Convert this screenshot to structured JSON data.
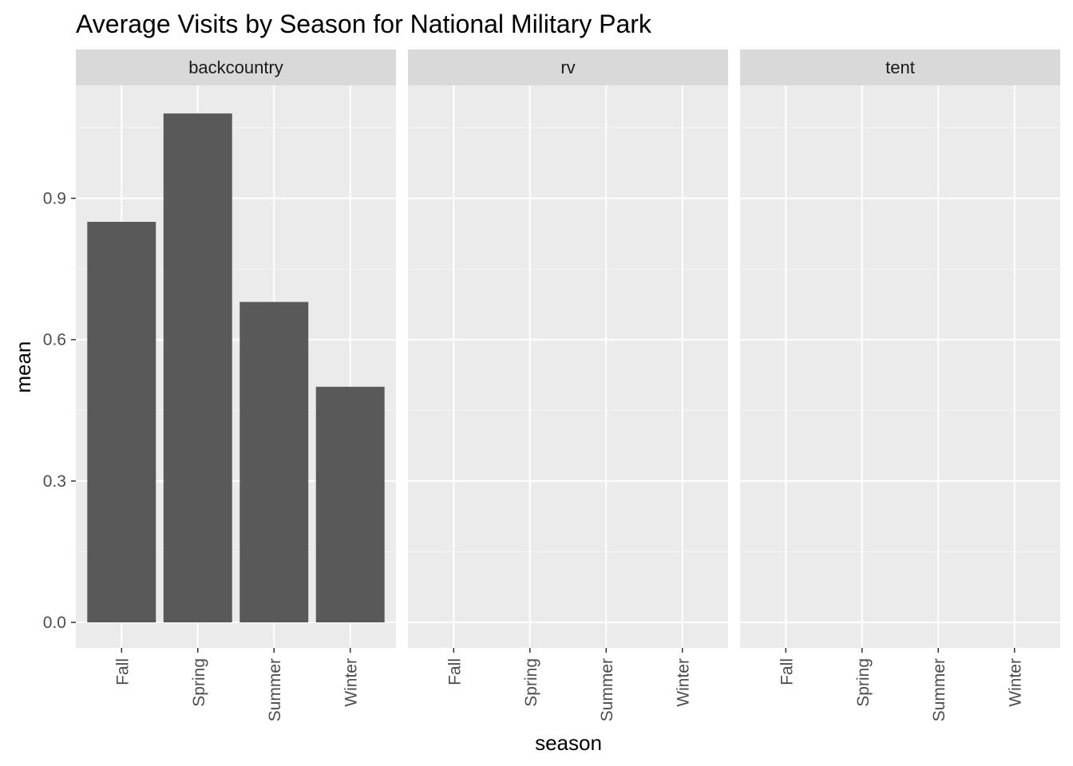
{
  "chart_data": {
    "type": "bar",
    "title": "Average Visits by Season for National Military Park",
    "xlabel": "season",
    "ylabel": "mean",
    "categories": [
      "Fall",
      "Spring",
      "Summer",
      "Winter"
    ],
    "facets": [
      {
        "name": "backcountry",
        "values": [
          0.85,
          1.08,
          0.68,
          0.5
        ]
      },
      {
        "name": "rv",
        "values": [
          null,
          null,
          null,
          null
        ]
      },
      {
        "name": "tent",
        "values": [
          null,
          null,
          null,
          null
        ]
      }
    ],
    "yticks": [
      "0.0",
      "0.3",
      "0.6",
      "0.9"
    ],
    "ylim": [
      -0.055,
      1.134
    ],
    "grid": true,
    "colors": {
      "bar": "#595959",
      "panel": "#ebebeb",
      "strip": "#d9d9d9",
      "grid_major": "#ffffff",
      "grid_minor": "#f5f5f5"
    }
  }
}
